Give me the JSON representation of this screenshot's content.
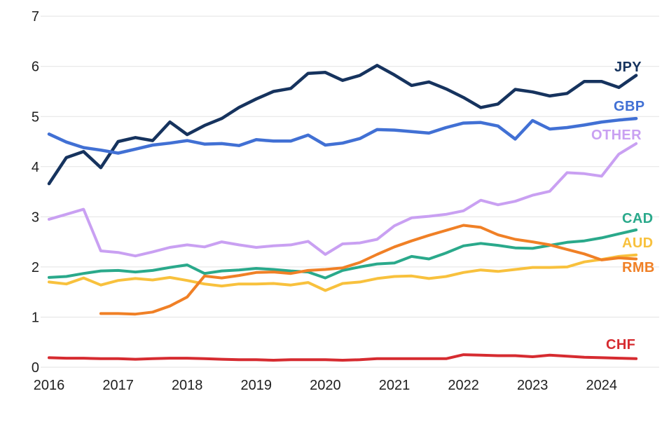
{
  "chart_data": {
    "type": "line",
    "title": "",
    "xlabel": "",
    "ylabel": "",
    "ylim": [
      0,
      7
    ],
    "grid": true,
    "legend_position": "end-of-line-labels-right",
    "background": "#ffffff",
    "grid_color": "#e3e3e3",
    "tick_color": "#1f1f1f",
    "y_tick_labels": [
      "0",
      "1",
      "2",
      "3",
      "4",
      "5",
      "6",
      "7"
    ],
    "x_tick_labels": [
      "2016",
      "2017",
      "2018",
      "2019",
      "2020",
      "2021",
      "2022",
      "2023",
      "2024"
    ],
    "x": [
      "2016Q1",
      "2016Q2",
      "2016Q3",
      "2016Q4",
      "2017Q1",
      "2017Q2",
      "2017Q3",
      "2017Q4",
      "2018Q1",
      "2018Q2",
      "2018Q3",
      "2018Q4",
      "2019Q1",
      "2019Q2",
      "2019Q3",
      "2019Q4",
      "2020Q1",
      "2020Q2",
      "2020Q3",
      "2020Q4",
      "2021Q1",
      "2021Q2",
      "2021Q3",
      "2021Q4",
      "2022Q1",
      "2022Q2",
      "2022Q3",
      "2022Q4",
      "2023Q1",
      "2023Q2",
      "2023Q3",
      "2023Q4",
      "2024Q1",
      "2024Q2",
      "2024Q3"
    ],
    "series": [
      {
        "name": "JPY",
        "color": "#16335e",
        "stroke_width": 4.5,
        "values": [
          3.66,
          4.18,
          4.3,
          3.98,
          4.5,
          4.58,
          4.52,
          4.89,
          4.64,
          4.82,
          4.96,
          5.18,
          5.35,
          5.5,
          5.56,
          5.86,
          5.88,
          5.72,
          5.82,
          6.02,
          5.83,
          5.62,
          5.69,
          5.55,
          5.38,
          5.18,
          5.25,
          5.54,
          5.49,
          5.41,
          5.46,
          5.7,
          5.7,
          5.58,
          5.82
        ]
      },
      {
        "name": "GBP",
        "color": "#4170d4",
        "stroke_width": 4.5,
        "values": [
          4.65,
          4.49,
          4.38,
          4.33,
          4.27,
          4.35,
          4.43,
          4.47,
          4.52,
          4.45,
          4.46,
          4.42,
          4.54,
          4.51,
          4.51,
          4.63,
          4.43,
          4.47,
          4.56,
          4.74,
          4.73,
          4.7,
          4.67,
          4.78,
          4.87,
          4.88,
          4.81,
          4.55,
          4.92,
          4.75,
          4.78,
          4.83,
          4.89,
          4.93,
          4.96
        ]
      },
      {
        "name": "OTHER",
        "color": "#c9a0f2",
        "stroke_width": 4,
        "values": [
          2.95,
          3.05,
          3.15,
          2.32,
          2.29,
          2.22,
          2.3,
          2.39,
          2.44,
          2.4,
          2.5,
          2.44,
          2.39,
          2.42,
          2.44,
          2.51,
          2.25,
          2.46,
          2.48,
          2.55,
          2.82,
          2.98,
          3.01,
          3.05,
          3.12,
          3.33,
          3.24,
          3.31,
          3.43,
          3.51,
          3.88,
          3.86,
          3.81,
          4.25,
          4.46
        ]
      },
      {
        "name": "CAD",
        "color": "#2aa98b",
        "stroke_width": 4,
        "values": [
          1.79,
          1.81,
          1.87,
          1.92,
          1.93,
          1.9,
          1.93,
          1.99,
          2.04,
          1.87,
          1.92,
          1.94,
          1.97,
          1.95,
          1.92,
          1.9,
          1.78,
          1.93,
          2.0,
          2.06,
          2.08,
          2.21,
          2.16,
          2.28,
          2.42,
          2.47,
          2.43,
          2.38,
          2.37,
          2.43,
          2.49,
          2.52,
          2.58,
          2.66,
          2.74
        ]
      },
      {
        "name": "AUD",
        "color": "#f8c13d",
        "stroke_width": 4,
        "values": [
          1.7,
          1.66,
          1.78,
          1.64,
          1.73,
          1.77,
          1.74,
          1.79,
          1.73,
          1.66,
          1.62,
          1.66,
          1.66,
          1.67,
          1.64,
          1.69,
          1.53,
          1.67,
          1.7,
          1.77,
          1.81,
          1.82,
          1.77,
          1.81,
          1.89,
          1.94,
          1.91,
          1.95,
          1.99,
          1.99,
          2.0,
          2.1,
          2.15,
          2.21,
          2.24
        ]
      },
      {
        "name": "RMB",
        "color": "#f08026",
        "stroke_width": 4,
        "values": [
          null,
          null,
          null,
          1.07,
          1.07,
          1.06,
          1.1,
          1.22,
          1.4,
          1.82,
          1.78,
          1.83,
          1.89,
          1.9,
          1.87,
          1.93,
          1.95,
          1.98,
          2.09,
          2.25,
          2.4,
          2.52,
          2.63,
          2.73,
          2.83,
          2.79,
          2.64,
          2.55,
          2.5,
          2.44,
          2.35,
          2.26,
          2.14,
          2.18,
          2.16
        ]
      },
      {
        "name": "CHF",
        "color": "#d62b30",
        "stroke_width": 4,
        "values": [
          0.19,
          0.18,
          0.18,
          0.17,
          0.17,
          0.16,
          0.17,
          0.18,
          0.18,
          0.17,
          0.16,
          0.15,
          0.15,
          0.14,
          0.15,
          0.15,
          0.15,
          0.14,
          0.15,
          0.17,
          0.17,
          0.17,
          0.17,
          0.17,
          0.25,
          0.24,
          0.23,
          0.23,
          0.21,
          0.24,
          0.22,
          0.2,
          0.19,
          0.18,
          0.17
        ]
      }
    ]
  }
}
